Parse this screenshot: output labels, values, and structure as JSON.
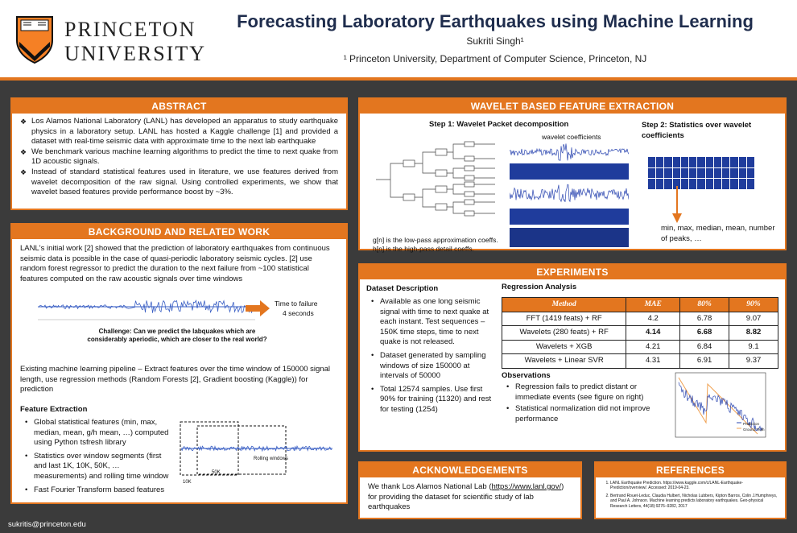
{
  "header": {
    "logo_line1": "PRINCETON",
    "logo_line2": "UNIVERSITY",
    "title": "Forecasting Laboratory Earthquakes using Machine Learning",
    "author": "Sukriti Singh¹",
    "affiliation": "¹ Princeton University, Department of Computer Science, Princeton, NJ"
  },
  "abstract": {
    "heading": "ABSTRACT",
    "bullets": [
      "Los Alamos National Laboratory (LANL) has developed an apparatus to study earthquake physics in a laboratory setup. LANL has hosted a Kaggle challenge [1] and provided a dataset with real-time seismic data with approximate time to the next lab earthquake",
      "We benchmark various machine learning algorithms to predict the time to next quake from 1D acoustic signals.",
      "Instead of standard statistical features used in literature, we use features derived from wavelet decomposition of the raw signal. Using controlled experiments, we show that wavelet based features provide performance boost by ~3%."
    ]
  },
  "background": {
    "heading": "BACKGROUND AND RELATED WORK",
    "intro": "LANL's initial work [2] showed that the prediction of laboratory earthquakes from continuous seismic data is possible in the case of quasi-periodic laboratory seismic cycles. [2] use random forest regressor to predict the duration to the next failure from ~100 statistical features computed on the raw acoustic signals over time windows",
    "time_to_failure": "Time to failure",
    "seconds": "4 seconds",
    "challenge": "Challenge: Can we predict the labquakes which are considerably aperiodic, which are closer to the real world?",
    "pipeline": "Existing machine learning pipeline – Extract features over the time window of 150000 signal length, use regression methods (Random Forests [2], Gradient boosting (Kaggle)) for prediction",
    "feature_heading": "Feature Extraction",
    "features": [
      "Global statistical features (min, max, median, mean, g/h mean, …) computed using Python tsfresh library",
      "Statistics over window segments (first and last 1K, 10K, 50K, … measurements) and rolling time window",
      "Fast Fourier Transform based features"
    ],
    "rolling_label": "Rolling windows",
    "label_10k": "10K",
    "label_50k": "50K"
  },
  "wavelet": {
    "heading": "WAVELET BASED FEATURE EXTRACTION",
    "step1": "Step 1: Wavelet Packet decomposition",
    "coeff_label": "wavelet coefficients",
    "gn": "g[n] is the low-pass approximation coeffs.",
    "hn": "h[n] is the high-pass detail coeffs.",
    "step2": "Step 2: Statistics over wavelet coefficients",
    "stats": "min, max, median, mean, number of peaks, …"
  },
  "experiments": {
    "heading": "EXPERIMENTS",
    "dataset_heading": "Dataset Description",
    "dataset_bullets": [
      "Available as one long seismic signal with time to next quake at each instant. Test sequences – 150K time steps, time to next quake is not released.",
      "Dataset generated by sampling windows of size 150000 at intervals of 50000",
      "Total 12574 samples. Use first 90% for training (11320) and rest for testing (1254)"
    ],
    "regression_heading": "Regression Analysis",
    "table": {
      "columns": [
        "Method",
        "MAE",
        "80%",
        "90%"
      ],
      "rows": [
        [
          "FFT (1419 feats) + RF",
          "4.2",
          "6.78",
          "9.07"
        ],
        [
          "Wavelets (280 feats) + RF",
          "4.14",
          "6.68",
          "8.82"
        ],
        [
          "Wavelets + XGB",
          "4.21",
          "6.84",
          "9.1"
        ],
        [
          "Wavelets + Linear SVR",
          "4.31",
          "6.91",
          "9.37"
        ]
      ]
    },
    "observations_heading": "Observations",
    "observations": [
      "Regression fails to predict distant or immediate events (see figure on right)",
      "Statistical normalization did not improve performance"
    ],
    "legend_pred": "Prediction",
    "legend_gt": "Ground Truth"
  },
  "acknowledgements": {
    "heading": "ACKNOWLEDGEMENTS",
    "text_before": "We thank Los Alamos National Lab (",
    "link": "https://www.lanl.gov/",
    "text_after": ") for providing the dataset for scientific study of lab earthquakes"
  },
  "references": {
    "heading": "REFERENCES",
    "items": [
      "LANL Earthquake Prediction. https://www.kaggle.com/c/LANL-Earthquake-Prediction/overview/. Accessed: 2019-04-23.",
      "Bertrand Rouet-Leduc, Claudia Hulbert, Nicholas Lubbers, Kipton Barros, Colin J.Humphreys, and Paul A. Johnson. Machine learning predicts laboratory earthquakes. Geo-physical Research Letters, 44(18):9276–9282, 2017"
    ]
  },
  "footer": {
    "email": "sukritis@princeton.edu"
  },
  "colors": {
    "accent": "#e3761f",
    "title": "#1f2d4d",
    "signal": "#3a5fc4"
  }
}
